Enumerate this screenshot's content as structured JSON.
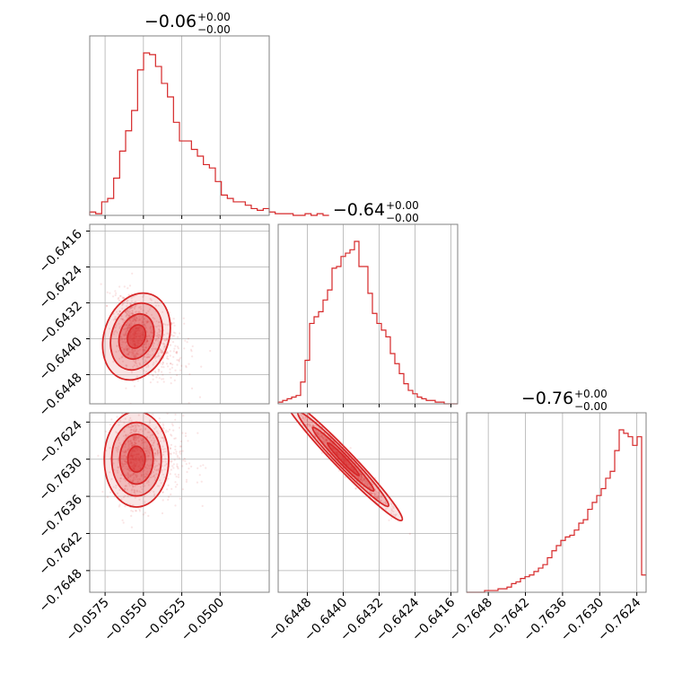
{
  "chart_data": {
    "type": "corner",
    "color": "#d62728",
    "grid": true,
    "parameters": [
      {
        "title": "−0.06",
        "title_upper": "+0.00",
        "title_lower": "−0.00",
        "range": [
          -0.0585,
          -0.0468
        ],
        "ticks": [
          -0.0575,
          -0.055,
          -0.0525,
          -0.05
        ],
        "tick_labels": [
          "−0.0575",
          "−0.0550",
          "−0.0525",
          "−0.0500"
        ],
        "histogram": {
          "bin_start": -0.0585,
          "bin_width": 0.00039,
          "counts": [
            2,
            1,
            8,
            10,
            22,
            38,
            50,
            62,
            86,
            96,
            95,
            88,
            78,
            70,
            55,
            44,
            44,
            39,
            35,
            30,
            28,
            20,
            12,
            10,
            8,
            8,
            6,
            4,
            3,
            4,
            2,
            1,
            1,
            1,
            0,
            0,
            1,
            0,
            1,
            0
          ]
        }
      },
      {
        "title": "−0.64",
        "title_upper": "+0.00",
        "title_lower": "−0.00",
        "range": [
          -0.64545,
          -0.64145
        ],
        "ticks": [
          -0.6448,
          -0.644,
          -0.6432,
          -0.6424,
          -0.6416
        ],
        "tick_labels": [
          "−0.6448",
          "−0.6440",
          "−0.6432",
          "−0.6424",
          "−0.6416"
        ],
        "histogram": {
          "bin_start": -0.64545,
          "bin_width": 0.0001,
          "counts": [
            1,
            2,
            3,
            4,
            5,
            13,
            26,
            48,
            52,
            55,
            62,
            68,
            81,
            82,
            88,
            90,
            92,
            97,
            82,
            82,
            66,
            54,
            48,
            44,
            40,
            30,
            24,
            18,
            12,
            8,
            6,
            4,
            3,
            2,
            2,
            1,
            1,
            0,
            0,
            0
          ]
        }
      },
      {
        "title": "−0.76",
        "title_upper": "+0.00",
        "title_lower": "−0.00",
        "range": [
          -0.76515,
          -0.76225
        ],
        "ticks": [
          -0.7648,
          -0.7642,
          -0.7636,
          -0.763,
          -0.7624
        ],
        "tick_labels": [
          "−0.7648",
          "−0.7642",
          "−0.7636",
          "−0.7630",
          "−0.7624"
        ],
        "histogram": {
          "bin_start": -0.76515,
          "bin_width": 7.25e-05,
          "counts": [
            0,
            0,
            0,
            0,
            1,
            1,
            1,
            2,
            2,
            3,
            5,
            6,
            8,
            9,
            10,
            12,
            14,
            16,
            20,
            24,
            27,
            30,
            32,
            33,
            36,
            40,
            42,
            48,
            52,
            56,
            60,
            66,
            70,
            82,
            94,
            92,
            90,
            85,
            90,
            10
          ]
        }
      }
    ],
    "panels_2d": [
      {
        "x_param": 0,
        "y_param": 1,
        "y_ticks": [
          -0.6416,
          -0.6424,
          -0.6432,
          -0.644,
          -0.6448
        ],
        "y_tick_labels": [
          "−0.6416",
          "−0.6424",
          "−0.6432",
          "−0.6440",
          "−0.6448"
        ],
        "y_range": [
          -0.64545,
          -0.64145
        ],
        "center": [
          -0.05545,
          -0.64395
        ],
        "spread": [
          0.00095,
          0.00045
        ],
        "correlation": -0.45
      },
      {
        "x_param": 0,
        "y_param": 2,
        "y_ticks": [
          -0.7624,
          -0.763,
          -0.7636,
          -0.7642,
          -0.7648
        ],
        "y_tick_labels": [
          "−0.7624",
          "−0.7630",
          "−0.7636",
          "−0.7642",
          "−0.7648"
        ],
        "y_range": [
          -0.76515,
          -0.76225
        ],
        "center": [
          -0.05545,
          -0.763
        ],
        "spread": [
          0.00095,
          0.00035
        ],
        "correlation": 0.0
      },
      {
        "x_param": 1,
        "y_param": 2,
        "y_range": [
          -0.76515,
          -0.76225
        ],
        "center": [
          -0.644,
          -0.763
        ],
        "spread": [
          0.00045,
          0.00035
        ],
        "correlation": -0.97
      }
    ]
  }
}
